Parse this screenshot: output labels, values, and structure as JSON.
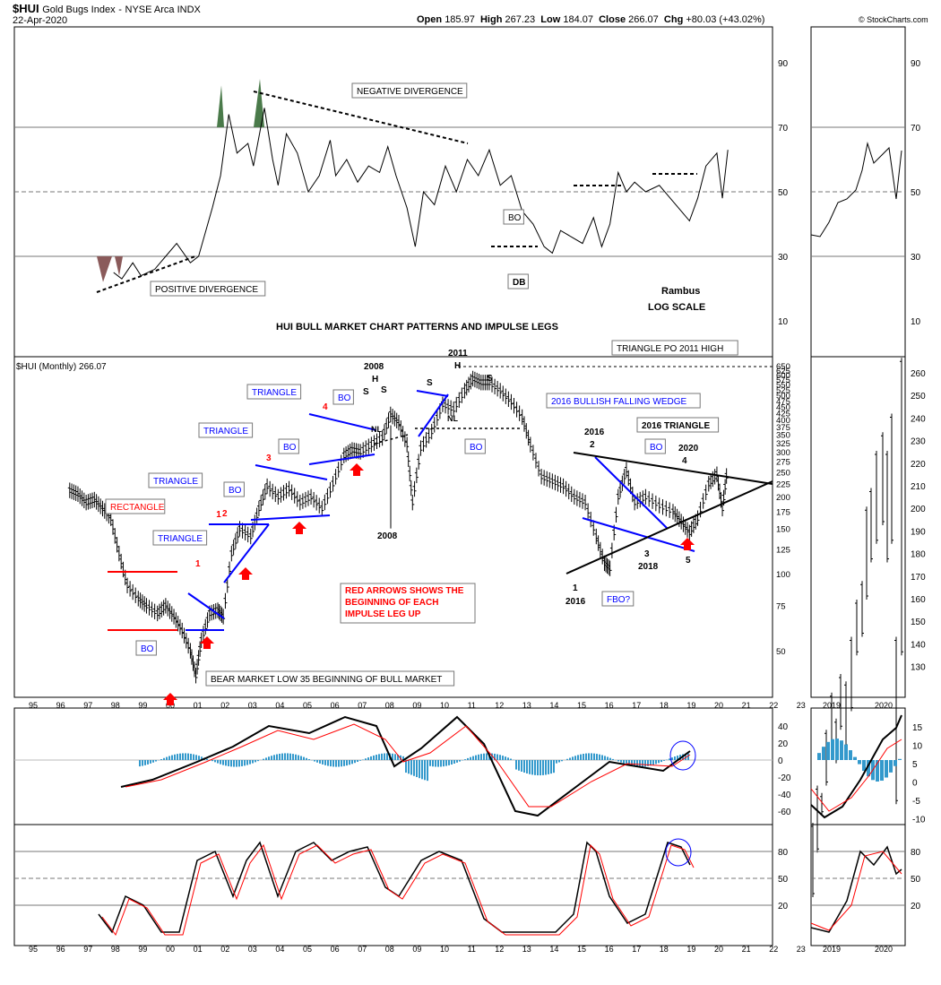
{
  "header": {
    "symbol": "$HUI",
    "name": "Gold Bugs Index",
    "exchange": "NYSE Arca INDX",
    "date": "22-Apr-2020",
    "open_label": "Open",
    "open": "185.97",
    "high_label": "High",
    "high": "267.23",
    "low_label": "Low",
    "low": "184.07",
    "close_label": "Close",
    "close": "266.07",
    "chg_label": "Chg",
    "chg": "+80.03 (+43.02%)",
    "copyright": "© StockCharts.com"
  },
  "colors": {
    "price_blue": "#0000ff",
    "red": "#ff0000",
    "black": "#000000",
    "macd_hist": "#3399cc",
    "rsi_fill_green": "#4a7a4a",
    "rsi_fill_red": "#8a5a5a",
    "grid": "#7f7f7f"
  },
  "chart_data": [
    {
      "panel": "RSI (top)",
      "type": "line",
      "ylim": [
        0,
        100
      ],
      "ticks": [
        "90",
        "70",
        "50",
        "30",
        "10"
      ],
      "reference_lines": [
        70,
        50,
        30
      ],
      "annotations": [
        "NEGATIVE DIVERGENCE",
        "POSITIVE DIVERGENCE",
        "BO",
        "DB",
        "Rambus",
        "LOG SCALE"
      ],
      "title_text": "HUI BULL MARKET CHART PATTERNS AND IMPULSE LEGS",
      "points": [
        [
          1997.9,
          25
        ],
        [
          1998.2,
          23
        ],
        [
          1998.6,
          28
        ],
        [
          1998.9,
          24
        ],
        [
          1999.4,
          26
        ],
        [
          1999.8,
          30
        ],
        [
          2000.2,
          34
        ],
        [
          2000.7,
          28
        ],
        [
          2001.0,
          30
        ],
        [
          2001.5,
          45
        ],
        [
          2001.8,
          55
        ],
        [
          2002.1,
          74
        ],
        [
          2002.4,
          62
        ],
        [
          2002.8,
          65
        ],
        [
          2003.0,
          58
        ],
        [
          2003.4,
          76
        ],
        [
          2003.7,
          60
        ],
        [
          2003.9,
          52
        ],
        [
          2004.2,
          68
        ],
        [
          2004.6,
          62
        ],
        [
          2005.0,
          50
        ],
        [
          2005.4,
          55
        ],
        [
          2005.8,
          66
        ],
        [
          2006.0,
          55
        ],
        [
          2006.4,
          60
        ],
        [
          2006.8,
          53
        ],
        [
          2007.2,
          58
        ],
        [
          2007.6,
          56
        ],
        [
          2007.9,
          64
        ],
        [
          2008.2,
          55
        ],
        [
          2008.6,
          45
        ],
        [
          2008.9,
          33
        ],
        [
          2009.2,
          50
        ],
        [
          2009.6,
          46
        ],
        [
          2010.0,
          58
        ],
        [
          2010.4,
          50
        ],
        [
          2010.8,
          60
        ],
        [
          2011.2,
          55
        ],
        [
          2011.6,
          63
        ],
        [
          2012.0,
          52
        ],
        [
          2012.4,
          55
        ],
        [
          2012.8,
          44
        ],
        [
          2013.2,
          40
        ],
        [
          2013.6,
          33
        ],
        [
          2013.9,
          31
        ],
        [
          2014.2,
          38
        ],
        [
          2014.6,
          36
        ],
        [
          2015.0,
          34
        ],
        [
          2015.4,
          42
        ],
        [
          2015.7,
          33
        ],
        [
          2016.0,
          40
        ],
        [
          2016.3,
          56
        ],
        [
          2016.6,
          50
        ],
        [
          2016.9,
          53
        ],
        [
          2017.3,
          50
        ],
        [
          2017.8,
          52
        ],
        [
          2018.2,
          48
        ],
        [
          2018.6,
          44
        ],
        [
          2018.9,
          41
        ],
        [
          2019.2,
          48
        ],
        [
          2019.5,
          58
        ],
        [
          2019.9,
          62
        ],
        [
          2020.1,
          48
        ],
        [
          2020.3,
          63
        ]
      ]
    },
    {
      "panel": "Price",
      "type": "line",
      "legend": "$HUI (Monthly) 266.07",
      "scale": "log",
      "y_ticks": [
        "650",
        "625",
        "600",
        "575",
        "550",
        "525",
        "500",
        "475",
        "450",
        "425",
        "400",
        "375",
        "350",
        "325",
        "300",
        "275",
        "250",
        "225",
        "200",
        "175",
        "150",
        "125",
        "100",
        "75",
        "50"
      ],
      "x_labels": [
        "95",
        "96",
        "97",
        "98",
        "99",
        "00",
        "01",
        "02",
        "03",
        "04",
        "05",
        "06",
        "07",
        "08",
        "09",
        "10",
        "11",
        "12",
        "13",
        "14",
        "15",
        "16",
        "17",
        "18",
        "19",
        "20",
        "21",
        "22",
        "23"
      ],
      "points": [
        [
          1996.3,
          212
        ],
        [
          1996.6,
          205
        ],
        [
          1996.9,
          190
        ],
        [
          1997.2,
          195
        ],
        [
          1997.5,
          180
        ],
        [
          1997.8,
          165
        ],
        [
          1998.1,
          120
        ],
        [
          1998.4,
          90
        ],
        [
          1998.8,
          80
        ],
        [
          1999.1,
          75
        ],
        [
          1999.5,
          70
        ],
        [
          1999.8,
          75
        ],
        [
          2000.1,
          68
        ],
        [
          2000.4,
          60
        ],
        [
          2000.7,
          50
        ],
        [
          2000.9,
          40
        ],
        [
          2001.1,
          55
        ],
        [
          2001.4,
          70
        ],
        [
          2001.7,
          72
        ],
        [
          2001.9,
          68
        ],
        [
          2002.2,
          120
        ],
        [
          2002.5,
          150
        ],
        [
          2002.9,
          140
        ],
        [
          2003.2,
          180
        ],
        [
          2003.5,
          220
        ],
        [
          2003.9,
          200
        ],
        [
          2004.3,
          215
        ],
        [
          2004.7,
          190
        ],
        [
          2005.1,
          200
        ],
        [
          2005.5,
          180
        ],
        [
          2005.9,
          225
        ],
        [
          2006.3,
          290
        ],
        [
          2006.6,
          305
        ],
        [
          2006.9,
          300
        ],
        [
          2007.3,
          320
        ],
        [
          2007.7,
          340
        ],
        [
          2008.0,
          420
        ],
        [
          2008.3,
          390
        ],
        [
          2008.6,
          320
        ],
        [
          2008.8,
          190
        ],
        [
          2009.1,
          310
        ],
        [
          2009.5,
          360
        ],
        [
          2009.9,
          460
        ],
        [
          2010.3,
          440
        ],
        [
          2010.7,
          520
        ],
        [
          2011.0,
          580
        ],
        [
          2011.3,
          560
        ],
        [
          2011.6,
          560
        ],
        [
          2012.0,
          520
        ],
        [
          2012.4,
          470
        ],
        [
          2012.8,
          410
        ],
        [
          2013.1,
          320
        ],
        [
          2013.5,
          240
        ],
        [
          2013.9,
          230
        ],
        [
          2014.3,
          220
        ],
        [
          2014.7,
          200
        ],
        [
          2015.1,
          190
        ],
        [
          2015.5,
          140
        ],
        [
          2015.8,
          110
        ],
        [
          2016.0,
          105
        ],
        [
          2016.3,
          200
        ],
        [
          2016.6,
          255
        ],
        [
          2016.9,
          190
        ],
        [
          2017.3,
          200
        ],
        [
          2017.8,
          185
        ],
        [
          2018.3,
          175
        ],
        [
          2018.6,
          160
        ],
        [
          2018.9,
          145
        ],
        [
          2019.2,
          165
        ],
        [
          2019.6,
          225
        ],
        [
          2019.9,
          245
        ],
        [
          2020.1,
          180
        ],
        [
          2020.3,
          266
        ]
      ],
      "annotations": [
        "RECTANGLE",
        "BO",
        "TRIANGLE",
        "TRIANGLE",
        "TRIANGLE",
        "TRIANGLE",
        "BO",
        "BO",
        "2008 H",
        "S",
        "S",
        "NL",
        "2008",
        "2011 H",
        "S",
        "S",
        "NL",
        "BO",
        "TRIANGLE PO 2011 HIGH",
        "2016 BULLISH FALLING WEDGE",
        "2016 TRIANGLE",
        "BO",
        "2020",
        "2016 2",
        "4",
        "1 2016",
        "3 2018",
        "5",
        "FBO?",
        "BEAR MARKET LOW 35 BEGINNING OF BULL MARKET",
        "RED ARROWS SHOWS THE BEGINNING OF EACH IMPULSE LEG UP"
      ]
    },
    {
      "panel": "MACD",
      "type": "area",
      "y_ticks": [
        "40",
        "20",
        "0",
        "-20",
        "-40",
        "-60"
      ]
    },
    {
      "panel": "Stochastic",
      "type": "line",
      "y_ticks": [
        "80",
        "50",
        "20"
      ],
      "reference_lines": [
        80,
        50,
        20
      ]
    },
    {
      "panel": "Daily inset",
      "type": "line",
      "x_labels": [
        "2019",
        "2020"
      ],
      "rsi_ticks": [
        "90",
        "70",
        "50",
        "30",
        "10"
      ],
      "price_ticks": [
        "260",
        "250",
        "240",
        "230",
        "220",
        "210",
        "200",
        "190",
        "180",
        "170",
        "160",
        "150",
        "140",
        "130"
      ],
      "macd_ticks": [
        "15",
        "10",
        "5",
        "0",
        "-5",
        "-10"
      ],
      "stoch_ticks": [
        "80",
        "50",
        "20"
      ]
    }
  ],
  "labels": {
    "neg_div": "NEGATIVE DIVERGENCE",
    "pos_div": "POSITIVE DIVERGENCE",
    "bo": "BO",
    "db": "DB",
    "rambus": "Rambus",
    "log_scale": "LOG SCALE",
    "main_title": "HUI BULL MARKET CHART PATTERNS AND IMPULSE LEGS",
    "price_legend": "$HUI (Monthly) 266.07",
    "rectangle": "RECTANGLE",
    "triangle": "TRIANGLE",
    "tri_po": "TRIANGLE PO 2011 HIGH",
    "wedge": "2016 BULLISH FALLING WEDGE",
    "tri2016": "2016 TRIANGLE",
    "y2008": "2008",
    "y2011": "2011",
    "y2016": "2016",
    "y2018": "2018",
    "y2020": "2020",
    "h": "H",
    "s": "S",
    "nl": "NL",
    "n1": "1",
    "n2": "2",
    "n3": "3",
    "n4": "4",
    "n5": "5",
    "fbo": "FBO?",
    "bear_low": "BEAR MARKET LOW 35 BEGINNING OF BULL MARKET",
    "red_arrows_1": "RED ARROWS SHOWS THE",
    "red_arrows_2": "BEGINNING OF EACH",
    "red_arrows_3": "IMPULSE LEG UP"
  }
}
